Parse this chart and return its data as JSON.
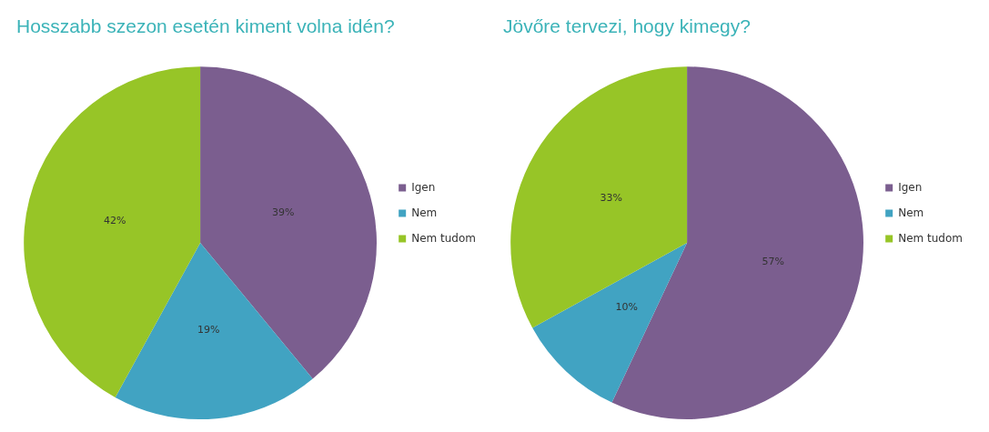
{
  "chart_data": [
    {
      "type": "pie",
      "title": "Hosszabb szezon esetén kiment volna idén?",
      "categories": [
        "Igen",
        "Nem",
        "Nem tudom"
      ],
      "values": [
        39,
        19,
        42
      ],
      "colors": [
        "#7b5e8f",
        "#41a3c2",
        "#97c527"
      ],
      "value_labels": [
        "39%",
        "19%",
        "42%"
      ],
      "legend": "right"
    },
    {
      "type": "pie",
      "title": "Jövőre tervezi, hogy kimegy?",
      "categories": [
        "Igen",
        "Nem",
        "Nem tudom"
      ],
      "values": [
        57,
        10,
        33
      ],
      "colors": [
        "#7b5e8f",
        "#41a3c2",
        "#97c527"
      ],
      "value_labels": [
        "57%",
        "10%",
        "33%"
      ],
      "legend": "right"
    }
  ]
}
